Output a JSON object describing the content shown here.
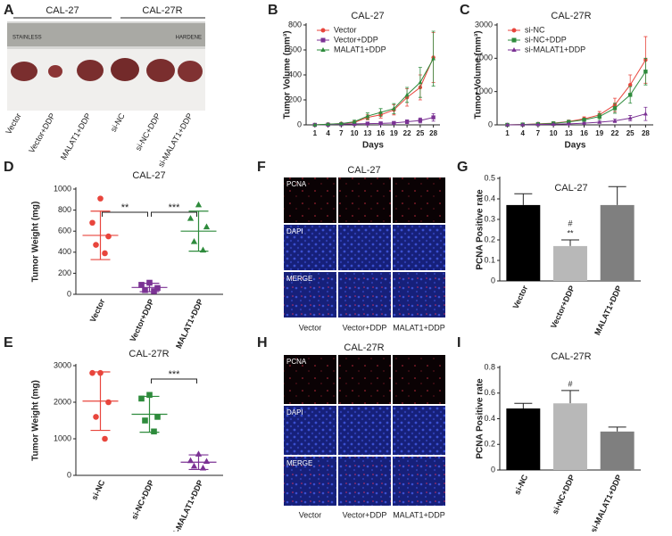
{
  "panels": [
    "A",
    "B",
    "C",
    "D",
    "E",
    "F",
    "G",
    "H",
    "I"
  ],
  "photo": {
    "groups": [
      "CAL-27",
      "CAL-27R"
    ],
    "ruler": [
      "STAINLESS",
      "HARDENE"
    ],
    "labels": [
      "Vector",
      "Vector+DDP",
      "MALAT1+DDP",
      "si-NC",
      "si-NC+DDP",
      "si-MALAT1+DDP"
    ]
  },
  "microscopy": [
    {
      "title": "CAL-27",
      "rows": [
        "PCNA",
        "DAPI",
        "MERGE"
      ],
      "columns": [
        "Vector",
        "Vector+DDP",
        "MALAT1+DDP"
      ]
    },
    {
      "title": "CAL-27R",
      "rows": [
        "PCNA",
        "DAPI",
        "MERGE"
      ],
      "columns": [
        "Vector",
        "Vector+DDP",
        "MALAT1+DDP"
      ]
    }
  ],
  "chart_data": [
    {
      "type": "line",
      "title": "CAL-27",
      "xlabel": "Days",
      "ylabel": "Tumor Volume (mm³)",
      "x": [
        1,
        4,
        7,
        10,
        13,
        16,
        19,
        22,
        25,
        28
      ],
      "xlim": [
        -1,
        29.5
      ],
      "xticks": [
        1,
        4,
        7,
        10,
        13,
        16,
        19,
        22,
        25,
        28
      ],
      "ylim": [
        0,
        800
      ],
      "yticks": [
        0,
        200,
        400,
        600,
        800
      ],
      "legend": "upper left",
      "series": [
        {
          "name": "Vector",
          "color": "#e8453c",
          "marker": "circle",
          "values": [
            0,
            5,
            10,
            20,
            60,
            80,
            120,
            220,
            300,
            540
          ],
          "errors": [
            0,
            3,
            5,
            10,
            20,
            25,
            40,
            70,
            100,
            200
          ]
        },
        {
          "name": "Vector+DDP",
          "color": "#7b3294",
          "marker": "square",
          "values": [
            0,
            2,
            5,
            8,
            10,
            12,
            15,
            25,
            35,
            60
          ],
          "errors": [
            0,
            2,
            3,
            5,
            5,
            5,
            8,
            15,
            20,
            30
          ]
        },
        {
          "name": "MALAT1+DDP",
          "color": "#2e8b3c",
          "marker": "triangle",
          "values": [
            0,
            5,
            10,
            25,
            70,
            100,
            130,
            240,
            340,
            530
          ],
          "errors": [
            0,
            3,
            6,
            12,
            25,
            30,
            40,
            60,
            120,
            220
          ]
        }
      ]
    },
    {
      "type": "line",
      "title": "CAL-27R",
      "xlabel": "Days",
      "ylabel": "Tumor Volume (mm³)",
      "x": [
        1,
        4,
        7,
        10,
        13,
        16,
        19,
        22,
        25,
        28
      ],
      "xlim": [
        -1,
        29.5
      ],
      "xticks": [
        1,
        4,
        7,
        10,
        13,
        16,
        19,
        22,
        25,
        28
      ],
      "ylim": [
        0,
        3000
      ],
      "yticks": [
        0,
        1000,
        2000,
        3000
      ],
      "legend": "upper left",
      "series": [
        {
          "name": "si-NC",
          "color": "#e8453c",
          "marker": "circle",
          "values": [
            0,
            10,
            30,
            50,
            100,
            180,
            300,
            600,
            1200,
            1950
          ],
          "errors": [
            0,
            5,
            10,
            20,
            40,
            60,
            100,
            200,
            300,
            700
          ]
        },
        {
          "name": "si-NC+DDP",
          "color": "#2e8b3c",
          "marker": "square",
          "values": [
            0,
            10,
            25,
            45,
            90,
            150,
            250,
            500,
            900,
            1600
          ],
          "errors": [
            0,
            5,
            10,
            20,
            30,
            50,
            90,
            150,
            250,
            400
          ]
        },
        {
          "name": "si-MALAT1+DDP",
          "color": "#7b3294",
          "marker": "triangle",
          "values": [
            0,
            5,
            10,
            20,
            30,
            50,
            80,
            120,
            200,
            330
          ],
          "errors": [
            0,
            3,
            5,
            10,
            15,
            20,
            30,
            50,
            80,
            200
          ]
        }
      ]
    },
    {
      "type": "strip",
      "title": "CAL-27",
      "ylabel": "Tumor Weight (mg)",
      "categories": [
        "Vector",
        "Vector+DDP",
        "MALAT1+DDP"
      ],
      "ylim": [
        0,
        1000
      ],
      "yticks": [
        0,
        200,
        400,
        600,
        800,
        1000
      ],
      "colors": [
        "#e8453c",
        "#7b3294",
        "#2e8b3c"
      ],
      "markers": [
        "circle",
        "square",
        "triangle"
      ],
      "points": [
        [
          910,
          680,
          550,
          470,
          390
        ],
        [
          110,
          90,
          60,
          40,
          30
        ],
        [
          850,
          720,
          640,
          500,
          420
        ]
      ],
      "means": [
        560,
        65,
        600
      ],
      "sds": [
        230,
        40,
        190
      ],
      "annotations": [
        "**",
        "***"
      ]
    },
    {
      "type": "strip",
      "title": "CAL-27R",
      "ylabel": "Tumor Weight (mg)",
      "categories": [
        "si-NC",
        "si-NC+DDP",
        "si-MALAT1+DDP"
      ],
      "ylim": [
        0,
        3000
      ],
      "yticks": [
        0,
        1000,
        2000,
        3000
      ],
      "colors": [
        "#e8453c",
        "#2e8b3c",
        "#7b3294"
      ],
      "markers": [
        "circle",
        "square",
        "triangle"
      ],
      "points": [
        [
          2800,
          2800,
          2000,
          1600,
          1000
        ],
        [
          2200,
          2100,
          1600,
          1500,
          1200
        ],
        [
          580,
          400,
          380,
          250,
          200
        ]
      ],
      "means": [
        2030,
        1670,
        360
      ],
      "sds": [
        800,
        490,
        200
      ],
      "annotations": [
        "***"
      ]
    },
    {
      "type": "bar",
      "title": "CAL-27",
      "ylabel": "PCNA Positive rate",
      "categories": [
        "Vector",
        "Vector+DDP",
        "MALAT1+DDP"
      ],
      "values": [
        0.37,
        0.17,
        0.37
      ],
      "errors": [
        0.055,
        0.03,
        0.09
      ],
      "colors": [
        "#000000",
        "#b8b8b8",
        "#7f7f7f"
      ],
      "ylim": [
        0,
        0.5
      ],
      "yticks": [
        0,
        0.1,
        0.2,
        0.3,
        0.4,
        0.5
      ],
      "annotations": [
        "#",
        "**"
      ]
    },
    {
      "type": "bar",
      "title": "CAL-27R",
      "ylabel": "PCNA Positive rate",
      "categories": [
        "si-NC",
        "si-NC+DDP",
        "si-MALAT1+DDP"
      ],
      "values": [
        0.48,
        0.52,
        0.3
      ],
      "errors": [
        0.04,
        0.1,
        0.035
      ],
      "colors": [
        "#000000",
        "#b8b8b8",
        "#7f7f7f"
      ],
      "ylim": [
        0,
        0.8
      ],
      "yticks": [
        0,
        0.2,
        0.4,
        0.6,
        0.8
      ],
      "annotations": [
        "#"
      ]
    }
  ]
}
